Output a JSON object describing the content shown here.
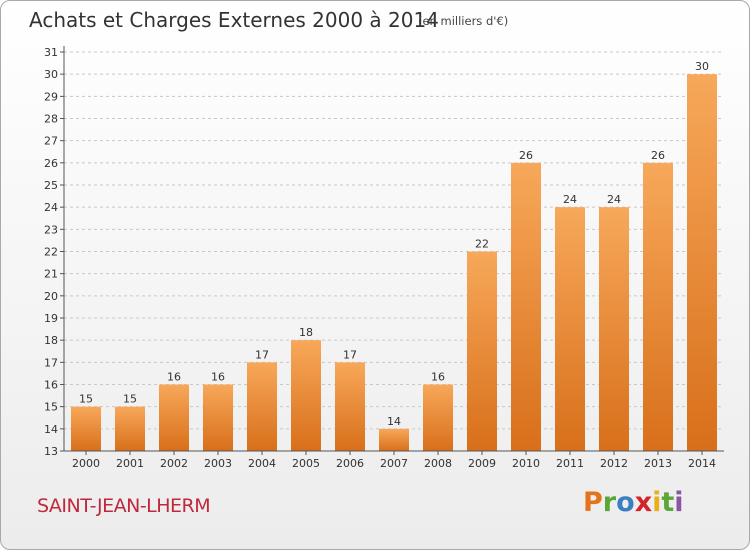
{
  "title": "Achats et Charges Externes 2000 à 2014",
  "subtitle": "(en milliers d'€)",
  "commune": "SAINT-JEAN-LHERM",
  "brand": {
    "letters": [
      "P",
      "r",
      "o",
      "x",
      "i",
      "t",
      "i"
    ],
    "colors": [
      "#e5731b",
      "#5aa637",
      "#3a7fc4",
      "#d4242a",
      "#e8b11b",
      "#5aa637",
      "#8b55a6"
    ]
  },
  "colors": {
    "bar": "#f39c4a",
    "bar_dark": "#d9731e",
    "axis": "#555555",
    "grid": "#c8c8c8"
  },
  "chart_data": {
    "type": "bar",
    "categories": [
      "2000",
      "2001",
      "2002",
      "2003",
      "2004",
      "2005",
      "2006",
      "2007",
      "2008",
      "2009",
      "2010",
      "2011",
      "2012",
      "2013",
      "2014"
    ],
    "values": [
      15,
      15,
      16,
      16,
      17,
      18,
      17,
      14,
      16,
      22,
      26,
      24,
      24,
      26,
      30
    ],
    "ylim": [
      13,
      31
    ],
    "yticks": [
      13,
      14,
      15,
      16,
      17,
      18,
      19,
      20,
      21,
      22,
      23,
      24,
      25,
      26,
      27,
      28,
      29,
      30,
      31
    ],
    "grid": true,
    "title": "Achats et Charges Externes 2000 à 2014",
    "xlabel": "",
    "ylabel": ""
  }
}
